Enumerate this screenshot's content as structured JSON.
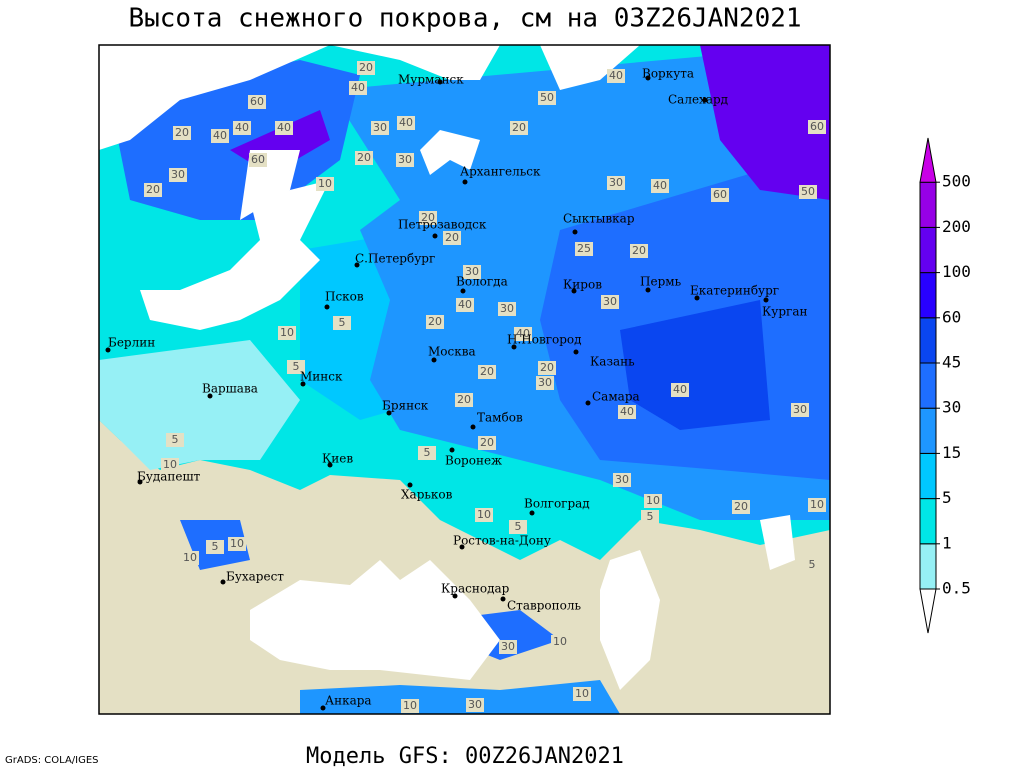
{
  "title": "Высота снежного покрова, см на 03Z26JAN2021",
  "footer": "Модель GFS: 00Z26JAN2021",
  "credit": "GrADS: COLA/IGES",
  "colorbar": {
    "levels": [
      0.5,
      1,
      5,
      15,
      30,
      45,
      60,
      100,
      200,
      500
    ],
    "colors": [
      "#ffffff",
      "#96f0f5",
      "#00e6e6",
      "#00c8ff",
      "#1e96ff",
      "#1e6eff",
      "#0a46f0",
      "#2800ff",
      "#6400f0",
      "#9600e6",
      "#c800e6"
    ]
  },
  "cities": [
    "Мурманск",
    "Воркута",
    "Салехард",
    "Архангельск",
    "Петрозаводск",
    "Сыктывкар",
    "С.Петербург",
    "Вологда",
    "Киров",
    "Пермь",
    "Екатеринбург",
    "Курган",
    "Псков",
    "Берлин",
    "Москва",
    "Н.Новгород",
    "Казань",
    "Варшава",
    "Минск",
    "Брянск",
    "Самара",
    "Тамбов",
    "Киев",
    "Воронеж",
    "Будапешт",
    "Харьков",
    "Волгоград",
    "Ростов-на-Дону",
    "Бухарест",
    "Краснодар",
    "Ставрополь",
    "Анкара"
  ],
  "contour_labels": [
    20,
    40,
    60,
    40,
    40,
    40,
    20,
    60,
    30,
    20,
    10,
    20,
    30,
    40,
    30,
    50,
    40,
    20,
    30,
    40,
    60,
    60,
    50,
    20,
    20,
    25,
    20,
    30,
    40,
    30,
    30,
    20,
    10,
    5,
    40,
    20,
    30,
    20,
    20,
    40,
    40,
    30,
    20,
    5,
    5,
    5,
    10,
    30,
    10,
    5,
    20,
    10,
    10,
    5,
    5,
    10,
    10,
    5,
    10,
    30,
    10,
    30,
    10
  ]
}
